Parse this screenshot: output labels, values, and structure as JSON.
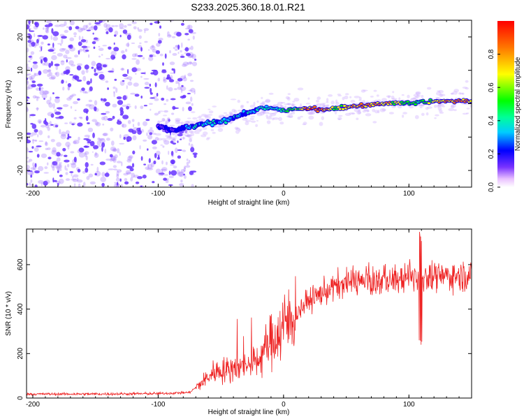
{
  "title": "S233.2025.360.18.01.R21",
  "colors": {
    "snr_line": "#ee2222",
    "noise_dot": "#9966ff",
    "signal_dot": "#6633ff"
  },
  "chart_data": [
    {
      "type": "heatmap",
      "name": "spectrogram",
      "xlabel": "Height of straight line (km)",
      "ylabel": "Frequency (Hz)",
      "xlim": [
        -205,
        150
      ],
      "ylim": [
        -25,
        25
      ],
      "xticks": [
        -200,
        -100,
        0,
        100
      ],
      "xtick_labels": [
        "-200",
        "-100",
        "0",
        "100"
      ],
      "yticks": [
        -20,
        -10,
        0,
        10,
        20
      ],
      "ytick_labels": [
        "-20",
        "-10",
        "0",
        "10",
        "20"
      ],
      "colorbar": {
        "label": "Normalized spectral amplitude",
        "range": [
          0,
          1
        ],
        "ticks": [
          0.0,
          0.2,
          0.4,
          0.6,
          0.8
        ],
        "tick_labels": [
          "0.0",
          "0.2",
          "0.4",
          "0.6",
          "0.8"
        ]
      },
      "ridge": {
        "x": [
          -100,
          -90,
          -80,
          -70,
          -60,
          -50,
          -40,
          -30,
          -20,
          -10,
          0,
          10,
          20,
          30,
          40,
          50,
          60,
          70,
          80,
          90,
          100,
          110,
          120,
          130,
          140,
          150
        ],
        "y": [
          -7,
          -8,
          -7.5,
          -6.5,
          -6,
          -5.5,
          -4,
          -3,
          -1.5,
          -1.5,
          -2,
          -1.5,
          -1.5,
          -1.5,
          -1.5,
          -1,
          -0.5,
          -0.5,
          0,
          0.3,
          0,
          0.5,
          0.5,
          0.8,
          0.8,
          1.0
        ],
        "amplitude": [
          0.2,
          0.2,
          0.3,
          0.35,
          0.4,
          0.4,
          0.4,
          0.35,
          0.4,
          0.45,
          0.5,
          0.6,
          0.9,
          0.95,
          0.7,
          0.8,
          0.9,
          0.9,
          0.8,
          0.7,
          0.6,
          0.55,
          0.7,
          0.85,
          0.9,
          0.9
        ]
      }
    },
    {
      "type": "line",
      "name": "snr",
      "xlabel": "Height of straight line (km)",
      "ylabel": "SNR (10 * v/v)",
      "xlim": [
        -205,
        150
      ],
      "ylim": [
        0,
        760
      ],
      "xticks": [
        -200,
        -100,
        0,
        100
      ],
      "xtick_labels": [
        "-200",
        "-100",
        "0",
        "100"
      ],
      "yticks": [
        0,
        200,
        400,
        600
      ],
      "ytick_labels": [
        "0",
        "200",
        "400",
        "600"
      ],
      "envelope": {
        "x": [
          -205,
          -150,
          -100,
          -75,
          -65,
          -55,
          -40,
          -30,
          -20,
          -10,
          0,
          10,
          20,
          30,
          40,
          50,
          60,
          70,
          80,
          90,
          100,
          110,
          120,
          130,
          140,
          150
        ],
        "y": [
          18,
          18,
          20,
          25,
          70,
          120,
          130,
          140,
          170,
          260,
          320,
          380,
          440,
          470,
          500,
          520,
          520,
          520,
          530,
          530,
          540,
          550,
          540,
          550,
          550,
          550
        ]
      }
    }
  ]
}
